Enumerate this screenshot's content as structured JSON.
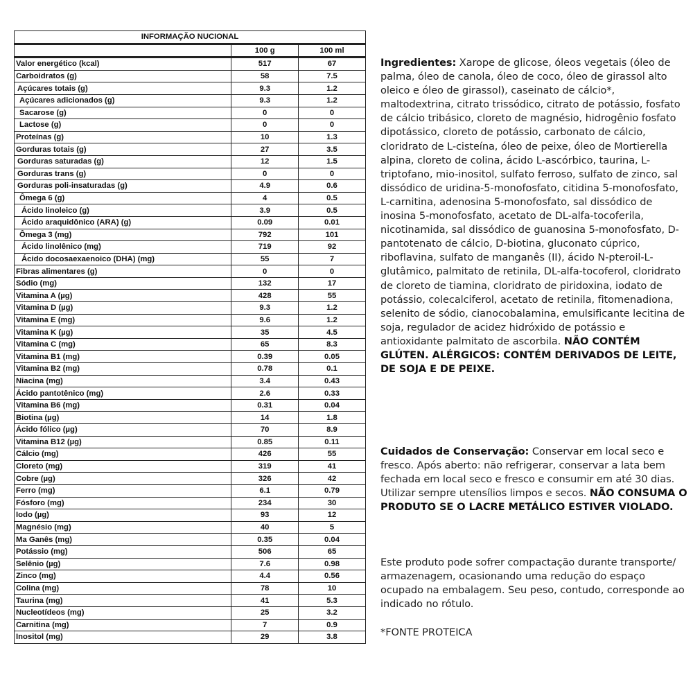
{
  "table": {
    "title": "INFORMAÇÃO NUCIONAL",
    "columns": [
      "",
      "100 g",
      "100 ml"
    ],
    "rows": [
      {
        "name": "Valor energético (kcal)",
        "level": 0,
        "g": "517",
        "ml": "67"
      },
      {
        "name": "Carboidratos (g)",
        "level": 0,
        "g": "58",
        "ml": "7.5"
      },
      {
        "name": "Açúcares totais (g)",
        "level": 1,
        "g": "9.3",
        "ml": "1.2"
      },
      {
        "name": "Açúcares adicionados (g)",
        "level": 2,
        "g": "9.3",
        "ml": "1.2"
      },
      {
        "name": "Sacarose (g)",
        "level": 2,
        "g": "0",
        "ml": "0"
      },
      {
        "name": "Lactose (g)",
        "level": 2,
        "g": "0",
        "ml": "0"
      },
      {
        "name": "Proteínas (g)",
        "level": 0,
        "g": "10",
        "ml": "1.3"
      },
      {
        "name": "Gorduras totais (g)",
        "level": 0,
        "g": "27",
        "ml": "3.5"
      },
      {
        "name": "Gorduras saturadas (g)",
        "level": 1,
        "g": "12",
        "ml": "1.5"
      },
      {
        "name": "Gorduras trans (g)",
        "level": 1,
        "g": "0",
        "ml": "0"
      },
      {
        "name": "Gorduras poli-insaturadas (g)",
        "level": 1,
        "g": "4.9",
        "ml": "0.6"
      },
      {
        "name": "Ômega 6 (g)",
        "level": 2,
        "g": "4",
        "ml": "0.5"
      },
      {
        "name": "Ácido linoleico (g)",
        "level": 3,
        "g": "3.9",
        "ml": "0.5"
      },
      {
        "name": "Ácido araquidônico (ARA) (g)",
        "level": 3,
        "g": "0.09",
        "ml": "0.01"
      },
      {
        "name": "Ômega 3 (mg)",
        "level": 2,
        "g": "792",
        "ml": "101"
      },
      {
        "name": "Ácido linolênico (mg)",
        "level": 3,
        "g": "719",
        "ml": "92"
      },
      {
        "name": "Ácido docosaexaenoico (DHA) (mg)",
        "level": 3,
        "g": "55",
        "ml": "7"
      },
      {
        "name": "Fibras alimentares (g)",
        "level": 0,
        "g": "0",
        "ml": "0"
      },
      {
        "name": "Sódio (mg)",
        "level": 0,
        "g": "132",
        "ml": "17"
      },
      {
        "name": "Vitamina A (µg)",
        "level": 0,
        "g": "428",
        "ml": "55"
      },
      {
        "name": "Vitamina D (µg)",
        "level": 0,
        "g": "9.3",
        "ml": "1.2"
      },
      {
        "name": "Vitamina E (mg)",
        "level": 0,
        "g": "9.6",
        "ml": "1.2"
      },
      {
        "name": "Vitamina K (µg)",
        "level": 0,
        "g": "35",
        "ml": "4.5"
      },
      {
        "name": "Vitamina C (mg)",
        "level": 0,
        "g": "65",
        "ml": "8.3"
      },
      {
        "name": "Vitamina B1 (mg)",
        "level": 0,
        "g": "0.39",
        "ml": "0.05"
      },
      {
        "name": "Vitamina B2 (mg)",
        "level": 0,
        "g": "0.78",
        "ml": "0.1"
      },
      {
        "name": "Niacina (mg)",
        "level": 0,
        "g": "3.4",
        "ml": "0.43"
      },
      {
        "name": "Ácido pantotênico (mg)",
        "level": 0,
        "g": "2.6",
        "ml": "0.33"
      },
      {
        "name": "Vitamina B6 (mg)",
        "level": 0,
        "g": "0.31",
        "ml": "0.04"
      },
      {
        "name": "Biotina (µg)",
        "level": 0,
        "g": "14",
        "ml": "1.8"
      },
      {
        "name": "Ácido fólico (µg)",
        "level": 0,
        "g": "70",
        "ml": "8.9"
      },
      {
        "name": "Vitamina B12 (µg)",
        "level": 0,
        "g": "0.85",
        "ml": "0.11"
      },
      {
        "name": "Cálcio (mg)",
        "level": 0,
        "g": "426",
        "ml": "55"
      },
      {
        "name": "Cloreto (mg)",
        "level": 0,
        "g": "319",
        "ml": "41"
      },
      {
        "name": "Cobre (µg)",
        "level": 0,
        "g": "326",
        "ml": "42"
      },
      {
        "name": "Ferro (mg)",
        "level": 0,
        "g": "6.1",
        "ml": "0.79"
      },
      {
        "name": "Fósforo (mg)",
        "level": 0,
        "g": "234",
        "ml": "30"
      },
      {
        "name": "Iodo (µg)",
        "level": 0,
        "g": "93",
        "ml": "12"
      },
      {
        "name": "Magnésio (mg)",
        "level": 0,
        "g": "40",
        "ml": "5"
      },
      {
        "name": "Ma Ganês (mg)",
        "level": 0,
        "g": "0.35",
        "ml": "0.04"
      },
      {
        "name": "Potássio (mg)",
        "level": 0,
        "g": "506",
        "ml": "65"
      },
      {
        "name": "Selênio (µg)",
        "level": 0,
        "g": "7.6",
        "ml": "0.98"
      },
      {
        "name": "Zinco (mg)",
        "level": 0,
        "g": "4.4",
        "ml": "0.56"
      },
      {
        "name": "Colina (mg)",
        "level": 0,
        "g": "78",
        "ml": "10"
      },
      {
        "name": "Taurina (mg)",
        "level": 0,
        "g": "41",
        "ml": "5.3"
      },
      {
        "name": "Nucleotídeos (mg)",
        "level": 0,
        "g": "25",
        "ml": "3.2"
      },
      {
        "name": "Carnitina (mg)",
        "level": 0,
        "g": "7",
        "ml": "0.9"
      },
      {
        "name": "Inositol (mg)",
        "level": 0,
        "g": "29",
        "ml": "3.8"
      }
    ]
  },
  "ingredients": {
    "label": "Ingredientes:",
    "text": " Xarope de glicose, óleos vegetais (óleo de palma, óleo de canola, óleo de coco, óleo de girassol alto oleico e óleo de girassol), caseinato de cálcio*, maltodextrina, citrato trissódico, citrato de potássio, fosfato de cálcio tribásico, cloreto de magnésio, hidrogênio fosfato dipotássico, cloreto de potássio, carbonato de cálcio, cloridrato de L-cisteína, óleo de peixe, óleo de Mortierella alpina, cloreto de colina, ácido L-ascórbico, taurina, L-triptofano, mio-inositol, sulfato ferroso, sulfato de zinco, sal dissódico de uridina-5-monofosfato, citidina 5-monofosfato, L-carnitina, adenosina 5-monofosfato, sal dissódico de inosina 5-monofosfato, acetato de DL-alfa-tocoferila, nicotinamida, sal dissódico de guanosina 5-monofosfato, D-pantotenato de cálcio, D-biotina, gluconato cúprico, riboflavina, sulfato de manganês (II), ácido N-pteroil-L-glutâmico, palmitato de retinila, DL-alfa-tocoferol, cloridrato de cloreto de tiamina, cloridrato de piridoxina, iodato de potássio, colecalciferol, acetato de retinila, fitomenadiona, selenito de sódio, cianocobalamina, emulsificante lecitina de soja, regulador de acidez hidróxido de potássio e antioxidante palmitato de ascorbila.",
    "allergens": "NÃO CONTÉM GLÚTEN. ALÉRGICOS: CONTÉM DERIVADOS DE LEITE, DE SOJA E DE PEIXE."
  },
  "storage": {
    "label": "Cuidados de Conservação:",
    "text": " Conservar em local seco e fresco. Após aberto: não refrigerar, conservar a lata bem fechada em local seco e fresco e consumir em até 30 dias. Utilizar sempre utensílios limpos e secos. ",
    "warning": "NÃO CONSUMA O PRODUTO SE O LACRE METÁLICO ESTIVER VIOLADO."
  },
  "compaction_note": "Este produto pode sofrer compactação durante transporte/ armazenagem, ocasionando uma redução do espaço ocupado na embalagem. Seu peso, contudo, corresponde ao indicado no rótulo.",
  "footnote": "*FONTE PROTEICA"
}
